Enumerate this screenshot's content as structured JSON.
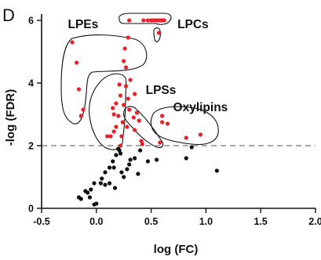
{
  "panel_label": "D",
  "chart_data": {
    "type": "scatter",
    "xlabel": "log (FC)",
    "ylabel": "-log (FDR)",
    "xlim": [
      -0.5,
      2.0
    ],
    "ylim": [
      0,
      6.2
    ],
    "xticks": [
      "-0.5",
      "0.0",
      "0.5",
      "1.0",
      "1.5",
      "2.0"
    ],
    "xtick_values": [
      -0.5,
      0,
      0.5,
      1.0,
      1.5,
      2.0
    ],
    "yticks": [
      "0",
      "2",
      "4",
      "6"
    ],
    "ytick_values": [
      0,
      2,
      4,
      6
    ],
    "threshold_y": 2,
    "grid": false,
    "colors": {
      "significant": "#e8202a",
      "not_significant": "#111111",
      "threshold": "#777777"
    },
    "annotations": [
      {
        "text": "LPEs",
        "x": -0.26,
        "y": 5.75
      },
      {
        "text": "LPCs",
        "x": 0.74,
        "y": 5.75
      },
      {
        "text": "LPSs",
        "x": 0.45,
        "y": 3.65
      },
      {
        "text": "Oxylipins",
        "x": 0.7,
        "y": 3.1
      }
    ],
    "series": [
      {
        "key": "significant",
        "points": [
          [
            -0.22,
            5.3
          ],
          [
            -0.18,
            4.65
          ],
          [
            -0.16,
            3.8
          ],
          [
            -0.12,
            3.15
          ],
          [
            -0.14,
            2.95
          ],
          [
            0.21,
            3.95
          ],
          [
            0.22,
            3.6
          ],
          [
            0.18,
            3.35
          ],
          [
            0.15,
            3.2
          ],
          [
            0.16,
            3.0
          ],
          [
            0.2,
            2.95
          ],
          [
            0.18,
            2.6
          ],
          [
            0.16,
            2.45
          ],
          [
            0.13,
            2.3
          ],
          [
            0.1,
            2.3
          ],
          [
            0.24,
            2.75
          ],
          [
            0.28,
            2.6
          ],
          [
            0.25,
            3.3
          ],
          [
            0.29,
            3.5
          ],
          [
            0.26,
            5.1
          ],
          [
            0.25,
            4.7
          ],
          [
            0.27,
            4.5
          ],
          [
            0.3,
            3.15
          ],
          [
            0.31,
            4.1
          ],
          [
            0.35,
            3.65
          ],
          [
            0.27,
            3.9
          ],
          [
            0.34,
            2.9
          ],
          [
            0.37,
            3.05
          ],
          [
            0.39,
            2.8
          ],
          [
            0.35,
            2.5
          ],
          [
            0.41,
            2.15
          ],
          [
            0.23,
            2.3
          ],
          [
            0.22,
            2.0
          ],
          [
            0.42,
            2.05
          ],
          [
            0.29,
            5.45
          ],
          [
            0.3,
            6.0
          ],
          [
            0.43,
            6.0
          ],
          [
            0.47,
            6.0
          ],
          [
            0.5,
            6.0
          ],
          [
            0.52,
            6.0
          ],
          [
            0.54,
            6.0
          ],
          [
            0.56,
            6.0
          ],
          [
            0.58,
            6.0
          ],
          [
            0.6,
            6.0
          ],
          [
            0.62,
            6.0
          ],
          [
            0.57,
            5.6
          ],
          [
            0.58,
            2.1
          ],
          [
            0.6,
            2.75
          ],
          [
            0.6,
            2.95
          ],
          [
            0.65,
            2.7
          ],
          [
            0.82,
            2.25
          ],
          [
            0.95,
            2.35
          ]
        ]
      },
      {
        "key": "not_significant",
        "points": [
          [
            0.2,
            1.9
          ],
          [
            0.18,
            1.7
          ],
          [
            0.21,
            1.85
          ],
          [
            0.22,
            1.75
          ],
          [
            0.15,
            1.5
          ],
          [
            0.12,
            1.3
          ],
          [
            0.16,
            1.3
          ],
          [
            0.08,
            1.15
          ],
          [
            0.05,
            0.95
          ],
          [
            0.04,
            0.8
          ],
          [
            -0.02,
            0.8
          ],
          [
            -0.05,
            0.6
          ],
          [
            -0.08,
            0.5
          ],
          [
            -0.1,
            0.55
          ],
          [
            -0.14,
            0.3
          ],
          [
            -0.16,
            0.35
          ],
          [
            -0.06,
            0.35
          ],
          [
            -0.02,
            0.12
          ],
          [
            0.0,
            0.15
          ],
          [
            0.08,
            0.75
          ],
          [
            0.12,
            0.8
          ],
          [
            0.17,
            0.65
          ],
          [
            0.23,
            1.15
          ],
          [
            0.25,
            1.0
          ],
          [
            0.28,
            1.25
          ],
          [
            0.3,
            1.4
          ],
          [
            0.31,
            1.55
          ],
          [
            0.35,
            1.6
          ],
          [
            0.4,
            1.85
          ],
          [
            0.38,
            1.1
          ],
          [
            0.47,
            1.5
          ],
          [
            0.55,
            1.55
          ],
          [
            0.82,
            1.6
          ],
          [
            0.87,
            1.95
          ],
          [
            1.1,
            1.2
          ]
        ]
      }
    ]
  }
}
